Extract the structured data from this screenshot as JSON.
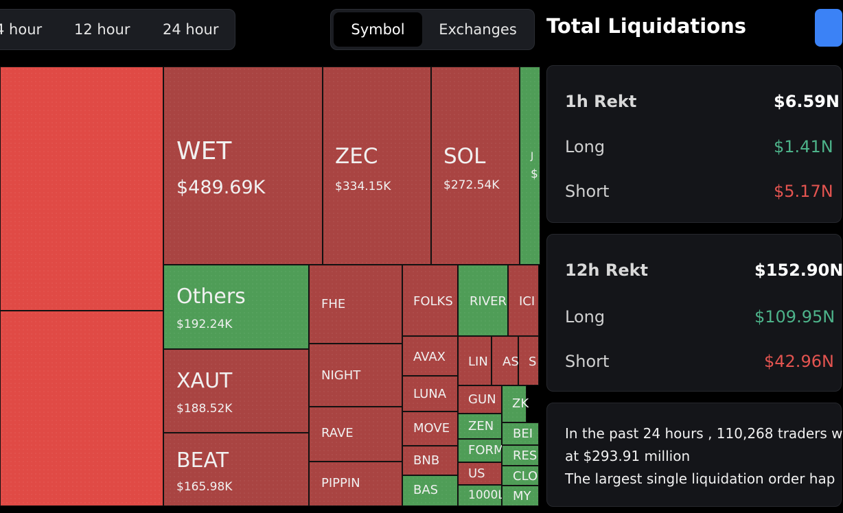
{
  "time_tabs": [
    "4 hour",
    "12 hour",
    "24 hour"
  ],
  "view_toggle": {
    "options": [
      "Symbol",
      "Exchanges"
    ],
    "active": "Symbol"
  },
  "panel_title": "Total Liquidations",
  "treemap": [
    {
      "key": "wet",
      "symbol": "WET",
      "value": "$489.69K",
      "color": "red"
    },
    {
      "key": "zec",
      "symbol": "ZEC",
      "value": "$334.15K",
      "color": "red"
    },
    {
      "key": "sol",
      "symbol": "SOL",
      "value": "$272.54K",
      "color": "red"
    },
    {
      "key": "j",
      "symbol": "J",
      "value": "$",
      "color": "green"
    },
    {
      "key": "others",
      "symbol": "Others",
      "value": "$192.24K",
      "color": "green"
    },
    {
      "key": "xaut",
      "symbol": "XAUT",
      "value": "$188.52K",
      "color": "red"
    },
    {
      "key": "beat",
      "symbol": "BEAT",
      "value": "$165.98K",
      "color": "red"
    },
    {
      "key": "fhe",
      "symbol": "FHE",
      "color": "red"
    },
    {
      "key": "night",
      "symbol": "NIGHT",
      "color": "red"
    },
    {
      "key": "rave",
      "symbol": "RAVE",
      "color": "red"
    },
    {
      "key": "pippin",
      "symbol": "PIPPIN",
      "color": "red"
    },
    {
      "key": "folks",
      "symbol": "FOLKS",
      "color": "red"
    },
    {
      "key": "river",
      "symbol": "RIVER",
      "color": "green"
    },
    {
      "key": "ic",
      "symbol": "ICI",
      "color": "red"
    },
    {
      "key": "avax",
      "symbol": "AVAX",
      "color": "red"
    },
    {
      "key": "luna",
      "symbol": "LUNA",
      "color": "red"
    },
    {
      "key": "move",
      "symbol": "MOVE",
      "color": "red"
    },
    {
      "key": "bnb",
      "symbol": "BNB",
      "color": "red"
    },
    {
      "key": "bas",
      "symbol": "BAS",
      "color": "green"
    },
    {
      "key": "lin",
      "symbol": "LIN",
      "color": "red"
    },
    {
      "key": "as",
      "symbol": "AS",
      "color": "red"
    },
    {
      "key": "s",
      "symbol": "S",
      "color": "red"
    },
    {
      "key": "gun",
      "symbol": "GUN",
      "color": "red"
    },
    {
      "key": "zk",
      "symbol": "ZK",
      "color": "green"
    },
    {
      "key": "zen",
      "symbol": "ZEN",
      "color": "green"
    },
    {
      "key": "bel",
      "symbol": "BEI",
      "color": "green"
    },
    {
      "key": "form",
      "symbol": "FORM",
      "color": "green"
    },
    {
      "key": "res",
      "symbol": "RES",
      "color": "green"
    },
    {
      "key": "us",
      "symbol": "US",
      "color": "red"
    },
    {
      "key": "clo",
      "symbol": "CLO",
      "color": "green"
    },
    {
      "key": "1000l",
      "symbol": "1000L",
      "color": "green"
    },
    {
      "key": "my",
      "symbol": "MY",
      "color": "green"
    }
  ],
  "stats": [
    {
      "period": "1h Rekt",
      "total": "$6.59N",
      "long_label": "Long",
      "long": "$1.41N",
      "short_label": "Short",
      "short": "$5.17N"
    },
    {
      "period": "12h Rekt",
      "total": "$152.90N",
      "long_label": "Long",
      "long": "$109.95N",
      "short_label": "Short",
      "short": "$42.96N"
    }
  ],
  "summary": {
    "line1": "In the past 24 hours , 110,268 traders w",
    "line2": "at $293.91 million",
    "line3": "The largest single liquidation order hap"
  },
  "colors": {
    "red": "#a94442",
    "bright_red": "#e04a45",
    "green": "#4f9d57",
    "long_text": "#4db38a",
    "short_text": "#e35450",
    "panel_bg": "#141519"
  }
}
